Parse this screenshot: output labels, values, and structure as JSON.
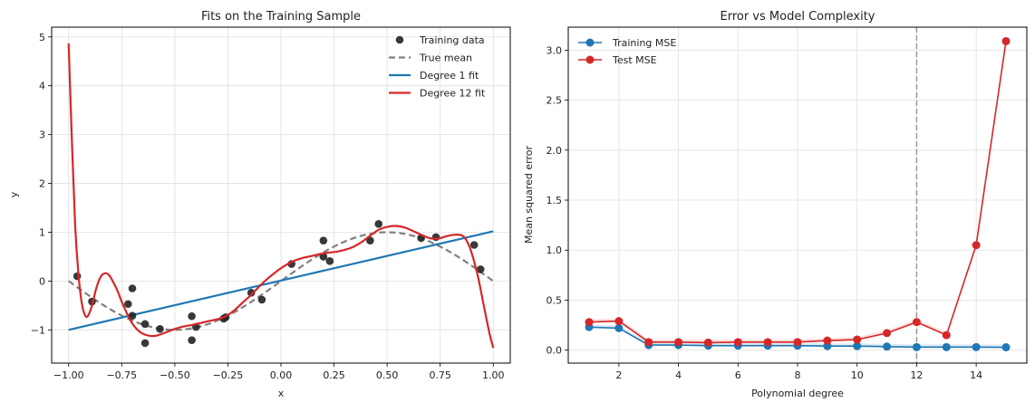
{
  "chart_data": [
    {
      "type": "scatter+line",
      "title": "Fits on the Training Sample",
      "xlabel": "x",
      "ylabel": "y",
      "xlim": [
        -1.08,
        1.08
      ],
      "ylim": [
        -1.68,
        5.2
      ],
      "xticks": [
        -1.0,
        -0.75,
        -0.5,
        -0.25,
        0.0,
        0.25,
        0.5,
        0.75,
        1.0
      ],
      "xtick_labels": [
        "−1.00",
        "−0.75",
        "−0.50",
        "−0.25",
        "0.00",
        "0.25",
        "0.50",
        "0.75",
        "1.00"
      ],
      "yticks": [
        -1,
        0,
        1,
        2,
        3,
        4,
        5
      ],
      "ytick_labels": [
        "−1",
        "0",
        "1",
        "2",
        "3",
        "4",
        "5"
      ],
      "grid": true,
      "legend_position": "top-right",
      "training_data": {
        "name": "Training data",
        "color": "#222222",
        "x": [
          -0.96,
          -0.89,
          -0.7,
          -0.72,
          -0.7,
          -0.64,
          -0.64,
          -0.57,
          -0.42,
          -0.42,
          -0.4,
          -0.27,
          -0.26,
          -0.14,
          -0.09,
          0.05,
          0.2,
          0.2,
          0.23,
          0.42,
          0.46,
          0.66,
          0.73,
          0.91,
          0.94
        ],
        "y": [
          0.1,
          -0.42,
          -0.15,
          -0.47,
          -0.71,
          -0.88,
          -1.27,
          -0.98,
          -0.72,
          -1.21,
          -0.94,
          -0.77,
          -0.74,
          -0.24,
          -0.38,
          0.35,
          0.83,
          0.5,
          0.41,
          0.83,
          1.17,
          0.88,
          0.9,
          0.74,
          0.24
        ]
      },
      "true_mean": {
        "name": "True mean",
        "color": "#808080",
        "function": "sin(pi*x)"
      },
      "degree1_fit": {
        "name": "Degree 1 fit",
        "color": "#1f77b4",
        "x": [
          -1.0,
          1.0
        ],
        "y": [
          -1.0,
          1.02
        ]
      },
      "degree12_fit": {
        "name": "Degree 12 fit",
        "color": "#d62728",
        "x": [
          -1.0,
          -0.985,
          -0.97,
          -0.955,
          -0.94,
          -0.925,
          -0.91,
          -0.89,
          -0.87,
          -0.85,
          -0.83,
          -0.81,
          -0.79,
          -0.77,
          -0.75,
          -0.73,
          -0.71,
          -0.69,
          -0.67,
          -0.65,
          -0.62,
          -0.59,
          -0.56,
          -0.53,
          -0.5,
          -0.46,
          -0.42,
          -0.38,
          -0.34,
          -0.3,
          -0.26,
          -0.22,
          -0.18,
          -0.14,
          -0.1,
          -0.06,
          -0.02,
          0.02,
          0.06,
          0.1,
          0.14,
          0.18,
          0.22,
          0.26,
          0.3,
          0.34,
          0.38,
          0.42,
          0.46,
          0.5,
          0.54,
          0.58,
          0.62,
          0.66,
          0.7,
          0.74,
          0.78,
          0.82,
          0.85,
          0.87,
          0.89,
          0.91,
          0.93,
          0.95,
          0.97,
          0.985,
          1.0
        ],
        "y": [
          4.87,
          2.9,
          1.2,
          0.2,
          -0.4,
          -0.68,
          -0.72,
          -0.5,
          -0.15,
          0.08,
          0.16,
          0.12,
          -0.02,
          -0.2,
          -0.42,
          -0.62,
          -0.8,
          -0.93,
          -1.02,
          -1.08,
          -1.12,
          -1.12,
          -1.08,
          -1.03,
          -0.98,
          -0.93,
          -0.9,
          -0.86,
          -0.82,
          -0.78,
          -0.72,
          -0.6,
          -0.44,
          -0.28,
          -0.1,
          0.06,
          0.2,
          0.32,
          0.41,
          0.47,
          0.51,
          0.55,
          0.58,
          0.6,
          0.64,
          0.7,
          0.8,
          0.93,
          1.05,
          1.11,
          1.13,
          1.1,
          1.03,
          0.95,
          0.88,
          0.87,
          0.92,
          0.95,
          0.94,
          0.86,
          0.68,
          0.4,
          0.05,
          -0.38,
          -0.82,
          -1.12,
          -1.37
        ]
      }
    },
    {
      "type": "line",
      "title": "Error vs Model Complexity",
      "xlabel": "Polynomial degree",
      "ylabel": "Mean squared error",
      "xlim": [
        0.3,
        15.7
      ],
      "ylim": [
        -0.13,
        3.23
      ],
      "xticks": [
        2,
        4,
        6,
        8,
        10,
        12,
        14
      ],
      "xtick_labels": [
        "2",
        "4",
        "6",
        "8",
        "10",
        "12",
        "14"
      ],
      "yticks": [
        0.0,
        0.5,
        1.0,
        1.5,
        2.0,
        2.5,
        3.0
      ],
      "ytick_labels": [
        "0.0",
        "0.5",
        "1.0",
        "1.5",
        "2.0",
        "2.5",
        "3.0"
      ],
      "grid": true,
      "legend_position": "top-left",
      "vline": {
        "x": 12,
        "color": "#999999",
        "style": "dashed"
      },
      "x": [
        1,
        2,
        3,
        4,
        5,
        6,
        7,
        8,
        9,
        10,
        11,
        12,
        13,
        14,
        15
      ],
      "series": [
        {
          "name": "Training MSE",
          "color": "#1f77b4",
          "values": [
            0.23,
            0.22,
            0.05,
            0.05,
            0.045,
            0.045,
            0.045,
            0.045,
            0.04,
            0.04,
            0.035,
            0.03,
            0.03,
            0.03,
            0.028
          ]
        },
        {
          "name": "Test MSE",
          "color": "#d62728",
          "values": [
            0.28,
            0.29,
            0.08,
            0.08,
            0.075,
            0.08,
            0.08,
            0.08,
            0.095,
            0.105,
            0.17,
            0.28,
            0.15,
            1.05,
            3.09
          ]
        }
      ]
    }
  ]
}
